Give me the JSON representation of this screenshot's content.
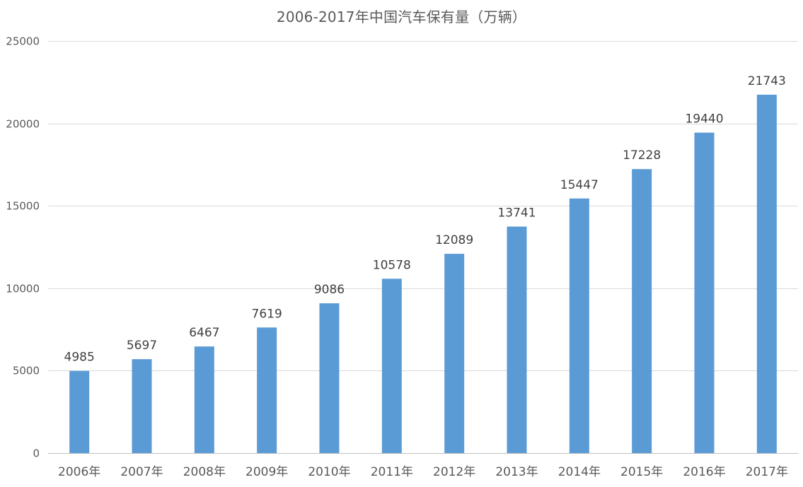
{
  "chart_data": {
    "type": "bar",
    "title": "2006-2017年中国汽车保有量（万辆）",
    "xlabel": "",
    "ylabel": "",
    "categories": [
      "2006年",
      "2007年",
      "2008年",
      "2009年",
      "2010年",
      "2011年",
      "2012年",
      "2013年",
      "2014年",
      "2015年",
      "2016年",
      "2017年"
    ],
    "values": [
      4985,
      5697,
      6467,
      7619,
      9086,
      10578,
      12089,
      13741,
      15447,
      17228,
      19440,
      21743
    ],
    "ylim": [
      0,
      25000
    ],
    "yticks": [
      0,
      5000,
      10000,
      15000,
      20000,
      25000
    ],
    "grid": true,
    "legend": "none",
    "data_labels": true,
    "bar_color": "#5b9bd5"
  }
}
